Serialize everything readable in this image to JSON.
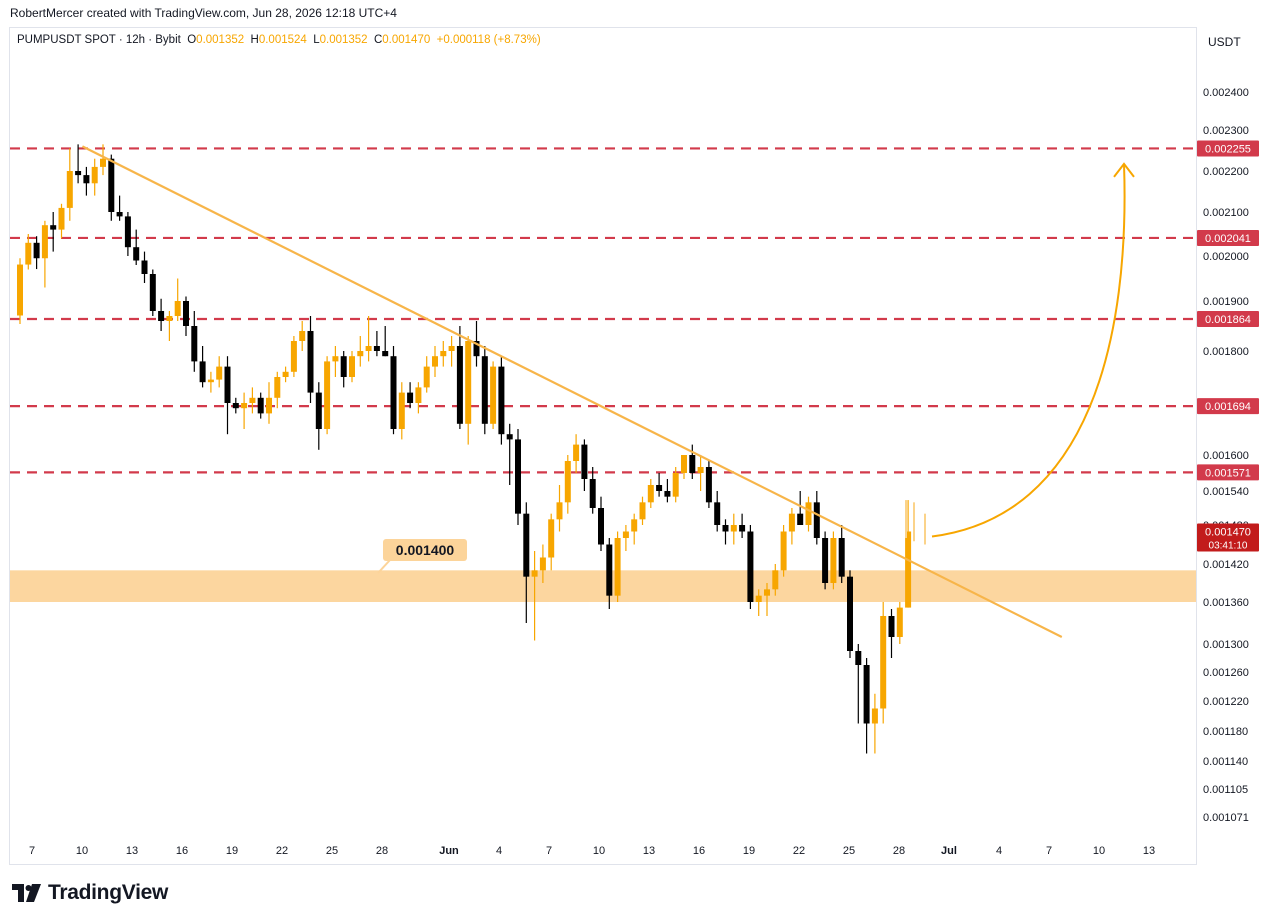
{
  "header": {
    "author_line": "RobertMercer created with TradingView.com, Jun 28, 2026 12:18 UTC+4"
  },
  "legend": {
    "symbol": "PUMPUSDT SPOT · 12h · Bybit",
    "o_label": "O",
    "o_value": "0.001352",
    "h_label": "H",
    "h_value": "0.001524",
    "l_label": "L",
    "l_value": "0.001352",
    "c_label": "C",
    "c_value": "0.001470",
    "change": "+0.000118 (+8.73%)"
  },
  "currency": "USDT",
  "brand": "TradingView",
  "zone_label": "0.001400",
  "colors": {
    "bull": "#f7a600",
    "bear": "#000000",
    "resistance": "#d23a4b",
    "trendline": "#f7b54a",
    "zone": "#fcd49a",
    "price_tag": "#c21b1b"
  },
  "chart_data": {
    "type": "candlestick",
    "y_axis_ticks": [
      "0.002400",
      "0.002300",
      "0.002200",
      "0.002100",
      "0.002000",
      "0.001900",
      "0.001800",
      "0.001600",
      "0.001540",
      "0.001480",
      "0.001420",
      "0.001360",
      "0.001300",
      "0.001260",
      "0.001220",
      "0.001180",
      "0.001140",
      "0.001105",
      "0.001071"
    ],
    "x_axis_ticks": [
      "7",
      "10",
      "13",
      "16",
      "19",
      "22",
      "25",
      "28",
      "Jun",
      "4",
      "7",
      "10",
      "13",
      "16",
      "19",
      "22",
      "25",
      "28",
      "Jul",
      "4",
      "7",
      "10",
      "13"
    ],
    "resistance_levels": [
      "0.002255",
      "0.002041",
      "0.001864",
      "0.001694",
      "0.001571"
    ],
    "current_price": "0.001470",
    "countdown": "03:41:10",
    "support_zone": {
      "low": 0.00136,
      "high": 0.00141,
      "label": "0.001400"
    },
    "trendline": {
      "from": {
        "date": "May 10",
        "price": 0.00226
      },
      "to": {
        "date": "Jul 8",
        "price": 0.00131
      }
    },
    "projection": {
      "from_price": 0.00145,
      "to_price": 0.00221,
      "direction": "up"
    },
    "candles": [
      {
        "d": "May 6 00:00",
        "o": 0.001871,
        "h": 0.001995,
        "l": 0.001854,
        "c": 0.001981
      },
      {
        "d": "May 6 12:00",
        "o": 0.001981,
        "h": 0.00205,
        "l": 0.00197,
        "c": 0.00203
      },
      {
        "d": "May 7 00:00",
        "o": 0.00203,
        "h": 0.002045,
        "l": 0.001971,
        "c": 0.001995
      },
      {
        "d": "May 7 12:00",
        "o": 0.001995,
        "h": 0.00208,
        "l": 0.00193,
        "c": 0.00207
      },
      {
        "d": "May 8 00:00",
        "o": 0.00207,
        "h": 0.0021,
        "l": 0.00201,
        "c": 0.00206
      },
      {
        "d": "May 8 12:00",
        "o": 0.00206,
        "h": 0.00212,
        "l": 0.00204,
        "c": 0.00211
      },
      {
        "d": "May 9 00:00",
        "o": 0.00211,
        "h": 0.002255,
        "l": 0.00208,
        "c": 0.0022
      },
      {
        "d": "May 9 12:00",
        "o": 0.0022,
        "h": 0.002265,
        "l": 0.00217,
        "c": 0.00219
      },
      {
        "d": "May 10 00:00",
        "o": 0.00219,
        "h": 0.00221,
        "l": 0.00214,
        "c": 0.00217
      },
      {
        "d": "May 10 12:00",
        "o": 0.00217,
        "h": 0.00223,
        "l": 0.00214,
        "c": 0.00221
      },
      {
        "d": "May 11 00:00",
        "o": 0.00221,
        "h": 0.002265,
        "l": 0.00219,
        "c": 0.00223
      },
      {
        "d": "May 11 12:00",
        "o": 0.00223,
        "h": 0.00224,
        "l": 0.00208,
        "c": 0.0021
      },
      {
        "d": "May 12 00:00",
        "o": 0.0021,
        "h": 0.00214,
        "l": 0.00208,
        "c": 0.00209
      },
      {
        "d": "May 12 12:00",
        "o": 0.00209,
        "h": 0.0021,
        "l": 0.002,
        "c": 0.00202
      },
      {
        "d": "May 13 00:00",
        "o": 0.00202,
        "h": 0.00206,
        "l": 0.00198,
        "c": 0.00199
      },
      {
        "d": "May 13 12:00",
        "o": 0.00199,
        "h": 0.00201,
        "l": 0.00194,
        "c": 0.00196
      },
      {
        "d": "May 14 00:00",
        "o": 0.00196,
        "h": 0.00197,
        "l": 0.00187,
        "c": 0.00188
      },
      {
        "d": "May 14 12:00",
        "o": 0.00188,
        "h": 0.001905,
        "l": 0.00184,
        "c": 0.00186
      },
      {
        "d": "May 15 00:00",
        "o": 0.00186,
        "h": 0.00188,
        "l": 0.00182,
        "c": 0.00187
      },
      {
        "d": "May 15 12:00",
        "o": 0.00187,
        "h": 0.00195,
        "l": 0.00186,
        "c": 0.0019
      },
      {
        "d": "May 16 00:00",
        "o": 0.0019,
        "h": 0.00191,
        "l": 0.00183,
        "c": 0.00185
      },
      {
        "d": "May 16 12:00",
        "o": 0.00185,
        "h": 0.00188,
        "l": 0.00176,
        "c": 0.00178
      },
      {
        "d": "May 17 00:00",
        "o": 0.00178,
        "h": 0.00181,
        "l": 0.00173,
        "c": 0.00174
      },
      {
        "d": "May 17 12:00",
        "o": 0.00174,
        "h": 0.00176,
        "l": 0.00172,
        "c": 0.001745
      },
      {
        "d": "May 18 00:00",
        "o": 0.001745,
        "h": 0.00179,
        "l": 0.00173,
        "c": 0.00177
      },
      {
        "d": "May 18 12:00",
        "o": 0.00177,
        "h": 0.00179,
        "l": 0.00164,
        "c": 0.0017
      },
      {
        "d": "May 19 00:00",
        "o": 0.0017,
        "h": 0.00171,
        "l": 0.00168,
        "c": 0.00169
      },
      {
        "d": "May 19 12:00",
        "o": 0.00169,
        "h": 0.00172,
        "l": 0.00165,
        "c": 0.0017
      },
      {
        "d": "May 20 00:00",
        "o": 0.0017,
        "h": 0.00173,
        "l": 0.00168,
        "c": 0.00171
      },
      {
        "d": "May 20 12:00",
        "o": 0.00171,
        "h": 0.00172,
        "l": 0.00167,
        "c": 0.00168
      },
      {
        "d": "May 21 00:00",
        "o": 0.00168,
        "h": 0.00174,
        "l": 0.00166,
        "c": 0.00171
      },
      {
        "d": "May 21 12:00",
        "o": 0.00171,
        "h": 0.00176,
        "l": 0.00169,
        "c": 0.00175
      },
      {
        "d": "May 22 00:00",
        "o": 0.00175,
        "h": 0.00177,
        "l": 0.00174,
        "c": 0.00176
      },
      {
        "d": "May 22 12:00",
        "o": 0.00176,
        "h": 0.00183,
        "l": 0.00175,
        "c": 0.00182
      },
      {
        "d": "May 23 00:00",
        "o": 0.00182,
        "h": 0.00186,
        "l": 0.0018,
        "c": 0.00184
      },
      {
        "d": "May 23 12:00",
        "o": 0.00184,
        "h": 0.00187,
        "l": 0.0017,
        "c": 0.00172
      },
      {
        "d": "May 24 00:00",
        "o": 0.00172,
        "h": 0.00174,
        "l": 0.00161,
        "c": 0.00165
      },
      {
        "d": "May 24 12:00",
        "o": 0.00165,
        "h": 0.00179,
        "l": 0.00164,
        "c": 0.00178
      },
      {
        "d": "May 25 00:00",
        "o": 0.00178,
        "h": 0.00181,
        "l": 0.00175,
        "c": 0.00179
      },
      {
        "d": "May 25 12:00",
        "o": 0.00179,
        "h": 0.0018,
        "l": 0.00173,
        "c": 0.00175
      },
      {
        "d": "May 26 00:00",
        "o": 0.00175,
        "h": 0.0018,
        "l": 0.00174,
        "c": 0.00179
      },
      {
        "d": "May 26 12:00",
        "o": 0.00179,
        "h": 0.00183,
        "l": 0.00177,
        "c": 0.0018
      },
      {
        "d": "May 27 00:00",
        "o": 0.0018,
        "h": 0.00187,
        "l": 0.00178,
        "c": 0.00181
      },
      {
        "d": "May 27 12:00",
        "o": 0.00181,
        "h": 0.00184,
        "l": 0.00179,
        "c": 0.0018
      },
      {
        "d": "May 28 00:00",
        "o": 0.0018,
        "h": 0.00185,
        "l": 0.00179,
        "c": 0.00179
      },
      {
        "d": "May 28 12:00",
        "o": 0.00179,
        "h": 0.00181,
        "l": 0.00164,
        "c": 0.00165
      },
      {
        "d": "May 29 00:00",
        "o": 0.00165,
        "h": 0.00174,
        "l": 0.00163,
        "c": 0.00172
      },
      {
        "d": "May 29 12:00",
        "o": 0.00172,
        "h": 0.00174,
        "l": 0.00169,
        "c": 0.0017
      },
      {
        "d": "May 30 00:00",
        "o": 0.0017,
        "h": 0.00174,
        "l": 0.00168,
        "c": 0.00173
      },
      {
        "d": "May 30 12:00",
        "o": 0.00173,
        "h": 0.00179,
        "l": 0.00172,
        "c": 0.00177
      },
      {
        "d": "May 31 00:00",
        "o": 0.00177,
        "h": 0.00181,
        "l": 0.00175,
        "c": 0.00179
      },
      {
        "d": "May 31 12:00",
        "o": 0.00179,
        "h": 0.00182,
        "l": 0.00177,
        "c": 0.0018
      },
      {
        "d": "Jun 1 00:00",
        "o": 0.0018,
        "h": 0.00183,
        "l": 0.00177,
        "c": 0.00181
      },
      {
        "d": "Jun 1 12:00",
        "o": 0.00181,
        "h": 0.00185,
        "l": 0.00165,
        "c": 0.00166
      },
      {
        "d": "Jun 2 00:00",
        "o": 0.00166,
        "h": 0.00183,
        "l": 0.00162,
        "c": 0.00182
      },
      {
        "d": "Jun 2 12:00",
        "o": 0.00182,
        "h": 0.00186,
        "l": 0.00177,
        "c": 0.00179
      },
      {
        "d": "Jun 3 00:00",
        "o": 0.00179,
        "h": 0.00181,
        "l": 0.00164,
        "c": 0.00166
      },
      {
        "d": "Jun 3 12:00",
        "o": 0.00166,
        "h": 0.00178,
        "l": 0.00165,
        "c": 0.00177
      },
      {
        "d": "Jun 4 00:00",
        "o": 0.00177,
        "h": 0.00179,
        "l": 0.00162,
        "c": 0.00164
      },
      {
        "d": "Jun 4 12:00",
        "o": 0.00164,
        "h": 0.00166,
        "l": 0.00155,
        "c": 0.00163
      },
      {
        "d": "Jun 5 00:00",
        "o": 0.00163,
        "h": 0.00165,
        "l": 0.00148,
        "c": 0.0015
      },
      {
        "d": "Jun 5 12:00",
        "o": 0.0015,
        "h": 0.00152,
        "l": 0.00133,
        "c": 0.0014
      },
      {
        "d": "Jun 6 00:00",
        "o": 0.0014,
        "h": 0.00144,
        "l": 0.001305,
        "c": 0.00141
      },
      {
        "d": "Jun 6 12:00",
        "o": 0.00141,
        "h": 0.00145,
        "l": 0.00139,
        "c": 0.00143
      },
      {
        "d": "Jun 7 00:00",
        "o": 0.00143,
        "h": 0.0015,
        "l": 0.00141,
        "c": 0.00149
      },
      {
        "d": "Jun 7 12:00",
        "o": 0.00149,
        "h": 0.00155,
        "l": 0.00147,
        "c": 0.00152
      },
      {
        "d": "Jun 8 00:00",
        "o": 0.00152,
        "h": 0.0016,
        "l": 0.0015,
        "c": 0.00159
      },
      {
        "d": "Jun 8 12:00",
        "o": 0.00159,
        "h": 0.00164,
        "l": 0.00157,
        "c": 0.00162
      },
      {
        "d": "Jun 9 00:00",
        "o": 0.00162,
        "h": 0.00163,
        "l": 0.00154,
        "c": 0.00156
      },
      {
        "d": "Jun 9 12:00",
        "o": 0.00156,
        "h": 0.00158,
        "l": 0.0015,
        "c": 0.00151
      },
      {
        "d": "Jun 10 00:00",
        "o": 0.00151,
        "h": 0.00153,
        "l": 0.00144,
        "c": 0.00145
      },
      {
        "d": "Jun 10 12:00",
        "o": 0.00145,
        "h": 0.00146,
        "l": 0.00135,
        "c": 0.00137
      },
      {
        "d": "Jun 11 00:00",
        "o": 0.00137,
        "h": 0.00147,
        "l": 0.00136,
        "c": 0.00146
      },
      {
        "d": "Jun 11 12:00",
        "o": 0.00146,
        "h": 0.00148,
        "l": 0.00144,
        "c": 0.00147
      },
      {
        "d": "Jun 12 00:00",
        "o": 0.00147,
        "h": 0.0015,
        "l": 0.00145,
        "c": 0.00149
      },
      {
        "d": "Jun 12 12:00",
        "o": 0.00149,
        "h": 0.00153,
        "l": 0.00148,
        "c": 0.00152
      },
      {
        "d": "Jun 13 00:00",
        "o": 0.00152,
        "h": 0.00156,
        "l": 0.00151,
        "c": 0.00155
      },
      {
        "d": "Jun 13 12:00",
        "o": 0.00155,
        "h": 0.00157,
        "l": 0.00153,
        "c": 0.00154
      },
      {
        "d": "Jun 14 00:00",
        "o": 0.00154,
        "h": 0.00156,
        "l": 0.00152,
        "c": 0.00153
      },
      {
        "d": "Jun 14 12:00",
        "o": 0.00153,
        "h": 0.00158,
        "l": 0.00152,
        "c": 0.00157
      },
      {
        "d": "Jun 15 00:00",
        "o": 0.00157,
        "h": 0.0016,
        "l": 0.00156,
        "c": 0.0016
      },
      {
        "d": "Jun 15 12:00",
        "o": 0.0016,
        "h": 0.00162,
        "l": 0.00156,
        "c": 0.00157
      },
      {
        "d": "Jun 16 00:00",
        "o": 0.00157,
        "h": 0.0016,
        "l": 0.00154,
        "c": 0.00158
      },
      {
        "d": "Jun 16 12:00",
        "o": 0.00158,
        "h": 0.00159,
        "l": 0.00151,
        "c": 0.00152
      },
      {
        "d": "Jun 17 00:00",
        "o": 0.00152,
        "h": 0.00154,
        "l": 0.00147,
        "c": 0.00148
      },
      {
        "d": "Jun 17 12:00",
        "o": 0.00148,
        "h": 0.00149,
        "l": 0.00145,
        "c": 0.00147
      },
      {
        "d": "Jun 18 00:00",
        "o": 0.00147,
        "h": 0.0015,
        "l": 0.00145,
        "c": 0.00148
      },
      {
        "d": "Jun 18 12:00",
        "o": 0.00148,
        "h": 0.0015,
        "l": 0.00146,
        "c": 0.00147
      },
      {
        "d": "Jun 19 00:00",
        "o": 0.00147,
        "h": 0.00148,
        "l": 0.00135,
        "c": 0.00136
      },
      {
        "d": "Jun 19 12:00",
        "o": 0.00136,
        "h": 0.00138,
        "l": 0.00134,
        "c": 0.00137
      },
      {
        "d": "Jun 20 00:00",
        "o": 0.00137,
        "h": 0.00139,
        "l": 0.00134,
        "c": 0.00138
      },
      {
        "d": "Jun 20 12:00",
        "o": 0.00138,
        "h": 0.00142,
        "l": 0.00137,
        "c": 0.00141
      },
      {
        "d": "Jun 21 00:00",
        "o": 0.00141,
        "h": 0.00148,
        "l": 0.0014,
        "c": 0.00147
      },
      {
        "d": "Jun 21 12:00",
        "o": 0.00147,
        "h": 0.00151,
        "l": 0.00145,
        "c": 0.0015
      },
      {
        "d": "Jun 22 00:00",
        "o": 0.0015,
        "h": 0.00154,
        "l": 0.00148,
        "c": 0.00148
      },
      {
        "d": "Jun 22 12:00",
        "o": 0.00148,
        "h": 0.00153,
        "l": 0.00147,
        "c": 0.00152
      },
      {
        "d": "Jun 23 00:00",
        "o": 0.00152,
        "h": 0.00154,
        "l": 0.00145,
        "c": 0.00146
      },
      {
        "d": "Jun 23 12:00",
        "o": 0.00146,
        "h": 0.00147,
        "l": 0.00138,
        "c": 0.00139
      },
      {
        "d": "Jun 24 00:00",
        "o": 0.00139,
        "h": 0.00147,
        "l": 0.00138,
        "c": 0.00146
      },
      {
        "d": "Jun 24 12:00",
        "o": 0.00146,
        "h": 0.00148,
        "l": 0.00139,
        "c": 0.0014
      },
      {
        "d": "Jun 25 00:00",
        "o": 0.0014,
        "h": 0.00141,
        "l": 0.00128,
        "c": 0.00129
      },
      {
        "d": "Jun 25 12:00",
        "o": 0.00129,
        "h": 0.0013,
        "l": 0.00119,
        "c": 0.00127
      },
      {
        "d": "Jun 26 00:00",
        "o": 0.00127,
        "h": 0.00128,
        "l": 0.00115,
        "c": 0.00119
      },
      {
        "d": "Jun 26 12:00",
        "o": 0.00119,
        "h": 0.00123,
        "l": 0.00115,
        "c": 0.00121
      },
      {
        "d": "Jun 27 00:00",
        "o": 0.00121,
        "h": 0.00136,
        "l": 0.00119,
        "c": 0.00134
      },
      {
        "d": "Jun 27 12:00",
        "o": 0.00134,
        "h": 0.00135,
        "l": 0.00128,
        "c": 0.00131
      },
      {
        "d": "Jun 28 00:00",
        "o": 0.00131,
        "h": 0.00136,
        "l": 0.0013,
        "c": 0.001352
      },
      {
        "d": "Jun 28 12:00",
        "o": 0.001352,
        "h": 0.001524,
        "l": 0.001352,
        "c": 0.00147
      }
    ]
  }
}
